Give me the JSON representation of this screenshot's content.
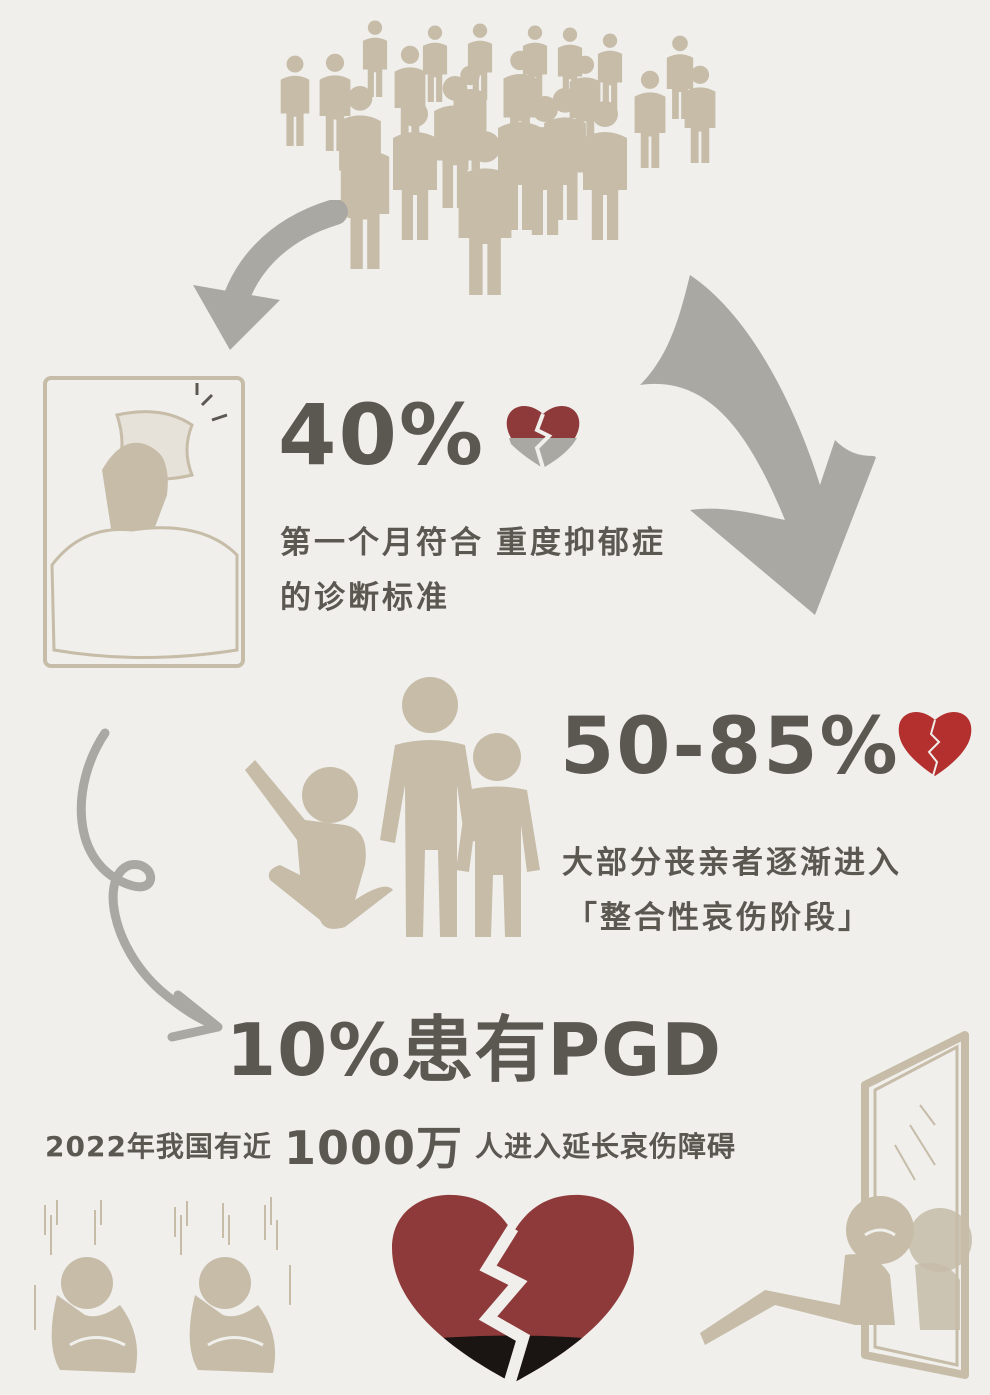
{
  "colors": {
    "background": "#f0efec",
    "figure": "#c6bca8",
    "arrow": "#a9a8a2",
    "text": "#5b5852",
    "heart_red": "#8e3a3a",
    "heart_dark": "#1a1412"
  },
  "section1": {
    "percent": "40%",
    "line1_a": "第一个月符合",
    "line1_b": "重度抑郁症",
    "line2": "的诊断标准",
    "illustration": "person-in-bed-icon",
    "heart_icon": "broken-heart-icon"
  },
  "section2": {
    "percent": "50-85%",
    "line1": "大部分丧亲者逐渐进入",
    "line2": "「整合性哀伤阶段」",
    "illustration": "family-icon",
    "heart_icon": "cracked-heart-icon"
  },
  "section3": {
    "headline": "10%患有PGD",
    "stat_a": "2022年我国有近",
    "stat_num": "1000万",
    "stat_b": "人进入延长哀伤障碍",
    "heart_icon": "large-broken-heart-icon"
  },
  "icons": [
    "crowd-icon",
    "curved-arrow-icon",
    "sad-people-icon",
    "mirror-person-icon"
  ]
}
